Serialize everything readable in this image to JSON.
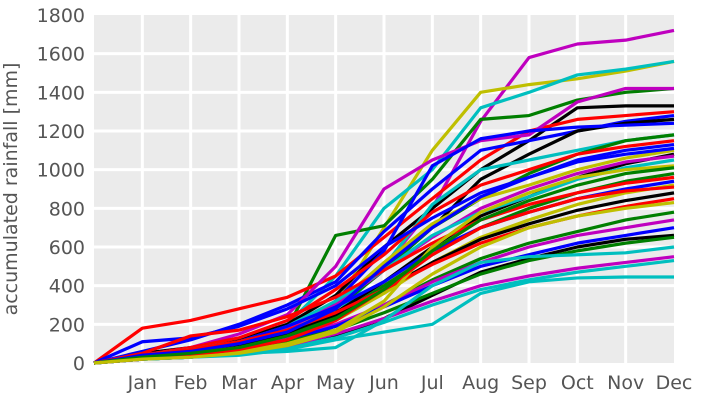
{
  "chart_data": {
    "type": "line",
    "title": "",
    "xlabel": "",
    "ylabel": "accumulated rainfall [mm]",
    "x": [
      0,
      1,
      2,
      3,
      4,
      5,
      6,
      7,
      8,
      9,
      10,
      11,
      12
    ],
    "categories": [
      "",
      "Jan",
      "Feb",
      "Mar",
      "Apr",
      "May",
      "Jun",
      "Jul",
      "Aug",
      "Sep",
      "Oct",
      "Nov",
      "Dec"
    ],
    "ylim": [
      0,
      1800
    ],
    "yticks": [
      0,
      200,
      400,
      600,
      800,
      1000,
      1200,
      1400,
      1600,
      1800
    ],
    "grid": true,
    "legend": "none",
    "series": [
      {
        "color": "#bf00bf",
        "values": [
          0,
          40,
          60,
          90,
          150,
          300,
          500,
          800,
          1250,
          1580,
          1650,
          1670,
          1720
        ]
      },
      {
        "color": "#bfbf00",
        "values": [
          0,
          30,
          50,
          70,
          120,
          300,
          700,
          1100,
          1400,
          1440,
          1470,
          1510,
          1560
        ]
      },
      {
        "color": "#00bfbf",
        "values": [
          0,
          35,
          50,
          80,
          200,
          450,
          800,
          1000,
          1320,
          1400,
          1490,
          1520,
          1560
        ]
      },
      {
        "color": "#007f00",
        "values": [
          0,
          30,
          50,
          60,
          180,
          660,
          710,
          950,
          1260,
          1280,
          1360,
          1400,
          1420
        ]
      },
      {
        "color": "#000000",
        "values": [
          0,
          50,
          80,
          120,
          200,
          350,
          600,
          800,
          1000,
          1150,
          1320,
          1330,
          1330
        ]
      },
      {
        "color": "#ff0000",
        "values": [
          0,
          180,
          220,
          280,
          340,
          450,
          650,
          850,
          1050,
          1200,
          1260,
          1280,
          1300
        ]
      },
      {
        "color": "#0000ff",
        "values": [
          0,
          60,
          120,
          200,
          300,
          420,
          680,
          900,
          1100,
          1150,
          1200,
          1250,
          1280
        ]
      },
      {
        "color": "#bf00bf",
        "values": [
          0,
          40,
          80,
          150,
          250,
          500,
          900,
          1050,
          1150,
          1180,
          1350,
          1420,
          1420
        ]
      },
      {
        "color": "#000000",
        "values": [
          0,
          30,
          60,
          100,
          170,
          280,
          500,
          700,
          950,
          1080,
          1200,
          1240,
          1260
        ]
      },
      {
        "color": "#0000ff",
        "values": [
          0,
          30,
          50,
          90,
          170,
          320,
          580,
          1020,
          1160,
          1200,
          1220,
          1230,
          1240
        ]
      },
      {
        "color": "#00bfbf",
        "values": [
          0,
          20,
          30,
          60,
          130,
          250,
          500,
          820,
          1000,
          1050,
          1100,
          1150,
          1180
        ]
      },
      {
        "color": "#007f00",
        "values": [
          0,
          25,
          40,
          70,
          150,
          280,
          480,
          700,
          850,
          980,
          1080,
          1150,
          1180
        ]
      },
      {
        "color": "#ff0000",
        "values": [
          0,
          40,
          80,
          130,
          220,
          380,
          560,
          780,
          920,
          1000,
          1080,
          1120,
          1150
        ]
      },
      {
        "color": "#0000ff",
        "values": [
          0,
          110,
          130,
          190,
          280,
          400,
          600,
          750,
          880,
          960,
          1050,
          1100,
          1130
        ]
      },
      {
        "color": "#bfbf00",
        "values": [
          0,
          30,
          50,
          80,
          160,
          300,
          520,
          720,
          850,
          920,
          1000,
          1060,
          1100
        ]
      },
      {
        "color": "#000000",
        "values": [
          0,
          20,
          40,
          80,
          150,
          260,
          420,
          600,
          760,
          860,
          960,
          1030,
          1080
        ]
      },
      {
        "color": "#bf00bf",
        "values": [
          0,
          30,
          60,
          100,
          180,
          300,
          480,
          650,
          800,
          900,
          980,
          1040,
          1070
        ]
      },
      {
        "color": "#00bfbf",
        "values": [
          0,
          40,
          70,
          110,
          190,
          320,
          480,
          660,
          780,
          860,
          950,
          1010,
          1050
        ]
      },
      {
        "color": "#007f00",
        "values": [
          0,
          20,
          40,
          70,
          140,
          240,
          400,
          560,
          700,
          800,
          880,
          940,
          980
        ]
      },
      {
        "color": "#ff0000",
        "values": [
          0,
          50,
          140,
          170,
          240,
          340,
          480,
          620,
          740,
          820,
          880,
          930,
          960
        ]
      },
      {
        "color": "#0000ff",
        "values": [
          0,
          30,
          60,
          110,
          190,
          290,
          420,
          580,
          700,
          780,
          850,
          900,
          940
        ]
      },
      {
        "color": "#bfbf00",
        "values": [
          0,
          20,
          40,
          70,
          120,
          220,
          360,
          520,
          650,
          740,
          820,
          880,
          920
        ]
      },
      {
        "color": "#000000",
        "values": [
          0,
          30,
          50,
          90,
          160,
          250,
          380,
          520,
          640,
          720,
          790,
          840,
          880
        ]
      },
      {
        "color": "#ff0000",
        "values": [
          0,
          40,
          70,
          110,
          170,
          260,
          380,
          510,
          620,
          700,
          760,
          810,
          850
        ]
      },
      {
        "color": "#007f00",
        "values": [
          0,
          20,
          30,
          60,
          110,
          190,
          300,
          430,
          540,
          620,
          680,
          740,
          780
        ]
      },
      {
        "color": "#bf00bf",
        "values": [
          0,
          30,
          50,
          80,
          130,
          200,
          300,
          420,
          520,
          600,
          660,
          700,
          740
        ]
      },
      {
        "color": "#0000ff",
        "values": [
          0,
          20,
          40,
          70,
          120,
          190,
          290,
          400,
          500,
          560,
          620,
          660,
          700
        ]
      },
      {
        "color": "#000000",
        "values": [
          0,
          20,
          30,
          50,
          80,
          140,
          230,
          350,
          470,
          540,
          600,
          640,
          660
        ]
      },
      {
        "color": "#007f00",
        "values": [
          0,
          30,
          50,
          70,
          110,
          170,
          260,
          360,
          460,
          530,
          580,
          620,
          650
        ]
      },
      {
        "color": "#00bfbf",
        "values": [
          0,
          20,
          30,
          50,
          80,
          130,
          210,
          300,
          380,
          430,
          470,
          500,
          530
        ]
      },
      {
        "color": "#bf00bf",
        "values": [
          0,
          25,
          40,
          60,
          90,
          150,
          230,
          320,
          400,
          450,
          490,
          520,
          550
        ]
      },
      {
        "color": "#00bfbf",
        "values": [
          0,
          20,
          30,
          40,
          70,
          120,
          160,
          200,
          360,
          420,
          440,
          445,
          445
        ]
      },
      {
        "color": "#00bfbf",
        "values": [
          0,
          20,
          30,
          50,
          60,
          80,
          220,
          400,
          520,
          550,
          560,
          570,
          600
        ]
      },
      {
        "color": "#bfbf00",
        "values": [
          0,
          30,
          40,
          60,
          100,
          170,
          320,
          600,
          780,
          880,
          960,
          1000,
          1020
        ]
      },
      {
        "color": "#ff0000",
        "values": [
          0,
          20,
          40,
          70,
          120,
          220,
          380,
          560,
          700,
          780,
          850,
          890,
          910
        ]
      },
      {
        "color": "#0000ff",
        "values": [
          0,
          40,
          60,
          100,
          160,
          280,
          500,
          700,
          860,
          960,
          1040,
          1080,
          1110
        ]
      },
      {
        "color": "#007f00",
        "values": [
          0,
          30,
          50,
          80,
          140,
          230,
          380,
          580,
          740,
          840,
          920,
          980,
          1010
        ]
      },
      {
        "color": "#bfbf00",
        "values": [
          0,
          20,
          30,
          50,
          90,
          160,
          290,
          460,
          600,
          700,
          760,
          800,
          830
        ]
      }
    ]
  }
}
